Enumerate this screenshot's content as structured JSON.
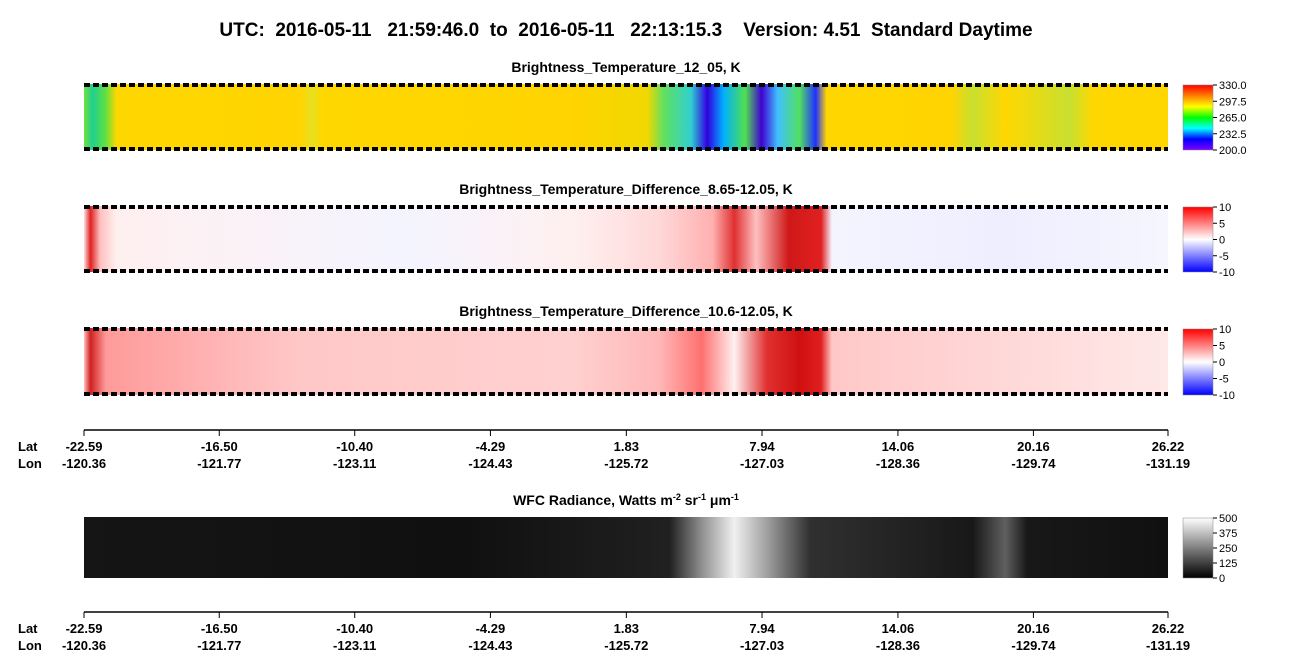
{
  "title": "UTC:  2016-05-11   21:59:46.0  to  2016-05-11   22:13:15.3    Version: 4.51  Standard Daytime",
  "chart_data": [
    {
      "type": "heatmap",
      "title": "Brightness_Temperature_12_05, K",
      "clim": [
        200,
        330
      ],
      "colormap": [
        "#8000ff",
        "#0000ff",
        "#00ffff",
        "#00ff00",
        "#ffff00",
        "#ff8000",
        "#ff0000"
      ],
      "cticks": [
        {
          "value": 330,
          "label": "330.0"
        },
        297.5,
        {
          "value": 265,
          "label": "265.0"
        },
        232.5,
        {
          "value": 200,
          "label": "200.0"
        }
      ]
    },
    {
      "type": "heatmap",
      "title": "Brightness_Temperature_Difference_8.65-12.05, K",
      "clim": [
        -10,
        10
      ],
      "colormap": [
        "#0000ff",
        "#ffffff",
        "#ff0000"
      ],
      "cticks": [
        10,
        5,
        0,
        -5,
        -10
      ]
    },
    {
      "type": "heatmap",
      "title": "Brightness_Temperature_Difference_10.6-12.05, K",
      "clim": [
        -10,
        10
      ],
      "colormap": [
        "#0000ff",
        "#ffffff",
        "#ff0000"
      ],
      "cticks": [
        10,
        5,
        0,
        -5,
        -10
      ],
      "xtick_row_labels": [
        "Lat",
        "Lon"
      ],
      "xlim": [
        -22.59,
        26.22
      ],
      "xticks": [
        -22.59,
        {
          "value": -16.5,
          "label": "-16.50"
        },
        {
          "value": -10.4,
          "label": "-10.40"
        },
        -4.29,
        1.83,
        7.94,
        14.06,
        20.16,
        26.22
      ],
      "xticks2": [
        -120.36,
        -121.77,
        -123.11,
        -124.43,
        -125.72,
        -127.03,
        -128.36,
        -129.74,
        -131.19
      ]
    },
    {
      "type": "heatmap",
      "title_parts": [
        {
          "text": "WFC Radiance, Watts m"
        },
        {
          "text": "-2",
          "sup": true
        },
        {
          "text": " sr"
        },
        {
          "text": "-1",
          "sup": true
        },
        {
          "text": " μm"
        },
        {
          "text": "-1",
          "sup": true
        }
      ],
      "clim": [
        0,
        500
      ],
      "colormap": [
        "#000000",
        "#ffffff"
      ],
      "cticks": [
        500,
        375,
        250,
        125,
        0
      ],
      "xtick_row_labels": [
        "Lat",
        "Lon"
      ],
      "xlim": [
        -22.59,
        26.22
      ],
      "xticks": [
        -22.59,
        {
          "value": -16.5,
          "label": "-16.50"
        },
        {
          "value": -10.4,
          "label": "-10.40"
        },
        -4.29,
        1.83,
        7.94,
        14.06,
        20.16,
        26.22
      ],
      "xticks2": [
        -120.36,
        -121.77,
        -123.11,
        -124.43,
        -125.72,
        -127.03,
        -128.36,
        -129.74,
        -131.19
      ]
    }
  ]
}
